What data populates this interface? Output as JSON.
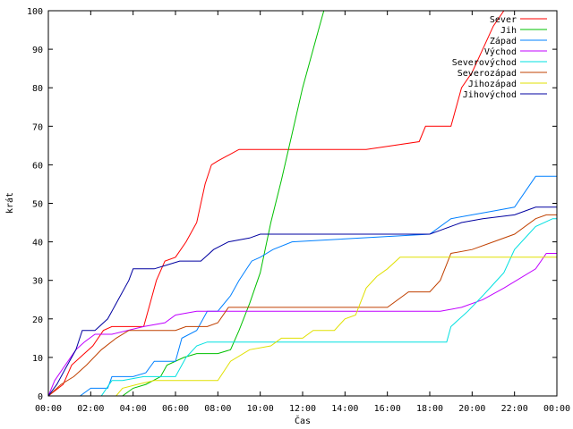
{
  "chart_data": {
    "type": "line",
    "title": "",
    "xlabel": "Čas",
    "ylabel": "krát",
    "xlim": [
      0,
      24
    ],
    "ylim": [
      0,
      100
    ],
    "x_ticks": [
      "00:00",
      "02:00",
      "04:00",
      "06:00",
      "08:00",
      "10:00",
      "12:00",
      "14:00",
      "16:00",
      "18:00",
      "20:00",
      "22:00",
      "00:00"
    ],
    "y_ticks": [
      0,
      10,
      20,
      30,
      40,
      50,
      60,
      70,
      80,
      90,
      100
    ],
    "grid": false,
    "legend_position": "top-right",
    "series": [
      {
        "name": "Sever",
        "color": "#ff0000",
        "points": [
          [
            0,
            0
          ],
          [
            0.7,
            3
          ],
          [
            1.1,
            8
          ],
          [
            1.5,
            10
          ],
          [
            2.1,
            13
          ],
          [
            2.6,
            17
          ],
          [
            3.0,
            18
          ],
          [
            4.5,
            18
          ],
          [
            4.8,
            24
          ],
          [
            5.1,
            30
          ],
          [
            5.5,
            35
          ],
          [
            6.0,
            36
          ],
          [
            6.5,
            40
          ],
          [
            7.0,
            45
          ],
          [
            7.4,
            55
          ],
          [
            7.7,
            60
          ],
          [
            8.0,
            61
          ],
          [
            9.0,
            64
          ],
          [
            15.0,
            64
          ],
          [
            17.5,
            66
          ],
          [
            17.8,
            70
          ],
          [
            19.0,
            70
          ],
          [
            19.5,
            80
          ],
          [
            20.0,
            84
          ],
          [
            20.5,
            90
          ],
          [
            21.0,
            96
          ],
          [
            21.5,
            100
          ],
          [
            24,
            100
          ]
        ]
      },
      {
        "name": "Jih",
        "color": "#00c000",
        "points": [
          [
            0,
            0
          ],
          [
            3.5,
            0
          ],
          [
            4.0,
            2
          ],
          [
            4.6,
            3
          ],
          [
            5.3,
            5
          ],
          [
            5.6,
            8
          ],
          [
            6.4,
            10
          ],
          [
            7.0,
            11
          ],
          [
            8.0,
            11
          ],
          [
            8.6,
            12
          ],
          [
            9.0,
            17
          ],
          [
            9.5,
            24
          ],
          [
            10.0,
            32
          ],
          [
            10.5,
            45
          ],
          [
            11.0,
            56
          ],
          [
            11.5,
            68
          ],
          [
            12.0,
            80
          ],
          [
            12.5,
            90
          ],
          [
            12.8,
            96
          ],
          [
            13.0,
            100
          ],
          [
            24,
            100
          ]
        ]
      },
      {
        "name": "Západ",
        "color": "#0080ff",
        "points": [
          [
            0,
            0
          ],
          [
            1.5,
            0
          ],
          [
            2.0,
            2
          ],
          [
            2.8,
            2
          ],
          [
            3.0,
            5
          ],
          [
            4.0,
            5
          ],
          [
            4.6,
            6
          ],
          [
            5.0,
            9
          ],
          [
            6.0,
            9
          ],
          [
            6.3,
            15
          ],
          [
            7.0,
            17
          ],
          [
            7.5,
            22
          ],
          [
            8.0,
            22
          ],
          [
            8.6,
            26
          ],
          [
            9.0,
            30
          ],
          [
            9.6,
            35
          ],
          [
            10.0,
            36
          ],
          [
            10.6,
            38
          ],
          [
            11.5,
            40
          ],
          [
            18.0,
            42
          ],
          [
            19.0,
            46
          ],
          [
            20.0,
            47
          ],
          [
            21.0,
            48
          ],
          [
            22.0,
            49
          ],
          [
            23.0,
            57
          ],
          [
            24,
            57
          ]
        ]
      },
      {
        "name": "Východ",
        "color": "#c000ff",
        "points": [
          [
            0,
            0
          ],
          [
            0.3,
            4
          ],
          [
            0.8,
            8
          ],
          [
            1.3,
            12
          ],
          [
            1.7,
            14
          ],
          [
            2.2,
            16
          ],
          [
            3.0,
            16
          ],
          [
            4.5,
            18
          ],
          [
            5.5,
            19
          ],
          [
            6.0,
            21
          ],
          [
            7.0,
            22
          ],
          [
            18.5,
            22
          ],
          [
            19.5,
            23
          ],
          [
            20.5,
            25
          ],
          [
            21.5,
            28
          ],
          [
            23.0,
            33
          ],
          [
            23.5,
            37
          ],
          [
            24,
            37
          ]
        ]
      },
      {
        "name": "Severovýchod",
        "color": "#00e0e0",
        "points": [
          [
            0,
            0
          ],
          [
            2.5,
            0
          ],
          [
            3.0,
            4
          ],
          [
            3.5,
            4
          ],
          [
            4.5,
            5
          ],
          [
            6.0,
            5
          ],
          [
            6.5,
            10
          ],
          [
            7.0,
            13
          ],
          [
            7.5,
            14
          ],
          [
            18.8,
            14
          ],
          [
            19.0,
            18
          ],
          [
            19.8,
            22
          ],
          [
            20.5,
            26
          ],
          [
            21.0,
            29
          ],
          [
            21.5,
            32
          ],
          [
            22.0,
            38
          ],
          [
            23.0,
            44
          ],
          [
            23.8,
            46
          ],
          [
            24,
            46
          ]
        ]
      },
      {
        "name": "Severozápad",
        "color": "#c04000",
        "points": [
          [
            0,
            0
          ],
          [
            0.6,
            3
          ],
          [
            1.2,
            5
          ],
          [
            1.8,
            8
          ],
          [
            2.5,
            12
          ],
          [
            3.2,
            15
          ],
          [
            3.8,
            17
          ],
          [
            5.0,
            17
          ],
          [
            6.0,
            17
          ],
          [
            6.5,
            18
          ],
          [
            7.5,
            18
          ],
          [
            8.0,
            19
          ],
          [
            8.5,
            23
          ],
          [
            16.0,
            23
          ],
          [
            17.0,
            27
          ],
          [
            18.0,
            27
          ],
          [
            18.5,
            30
          ],
          [
            19.0,
            37
          ],
          [
            20.0,
            38
          ],
          [
            21.0,
            40
          ],
          [
            22.0,
            42
          ],
          [
            23.0,
            46
          ],
          [
            23.5,
            47
          ],
          [
            24,
            47
          ]
        ]
      },
      {
        "name": "Jihozápad",
        "color": "#e0e000",
        "points": [
          [
            0,
            0
          ],
          [
            3.2,
            0
          ],
          [
            3.5,
            2
          ],
          [
            4.2,
            3
          ],
          [
            5.0,
            4
          ],
          [
            8.0,
            4
          ],
          [
            8.6,
            9
          ],
          [
            9.5,
            12
          ],
          [
            10.5,
            13
          ],
          [
            11.0,
            15
          ],
          [
            12.0,
            15
          ],
          [
            12.5,
            17
          ],
          [
            13.5,
            17
          ],
          [
            14.0,
            20
          ],
          [
            14.5,
            21
          ],
          [
            15.0,
            28
          ],
          [
            15.5,
            31
          ],
          [
            16.0,
            33
          ],
          [
            16.6,
            36
          ],
          [
            24,
            36
          ]
        ]
      },
      {
        "name": "Jihovýchod",
        "color": "#0000a0",
        "points": [
          [
            0,
            0
          ],
          [
            0.4,
            3
          ],
          [
            0.8,
            7
          ],
          [
            1.3,
            12
          ],
          [
            1.6,
            17
          ],
          [
            2.2,
            17
          ],
          [
            2.8,
            20
          ],
          [
            3.3,
            25
          ],
          [
            3.8,
            30
          ],
          [
            4.0,
            33
          ],
          [
            5.0,
            33
          ],
          [
            5.6,
            34
          ],
          [
            6.2,
            35
          ],
          [
            7.2,
            35
          ],
          [
            7.8,
            38
          ],
          [
            8.5,
            40
          ],
          [
            9.5,
            41
          ],
          [
            10.0,
            42
          ],
          [
            18.0,
            42
          ],
          [
            18.5,
            43
          ],
          [
            19.5,
            45
          ],
          [
            20.5,
            46
          ],
          [
            22.0,
            47
          ],
          [
            23.0,
            49
          ],
          [
            24,
            49
          ]
        ]
      }
    ]
  }
}
